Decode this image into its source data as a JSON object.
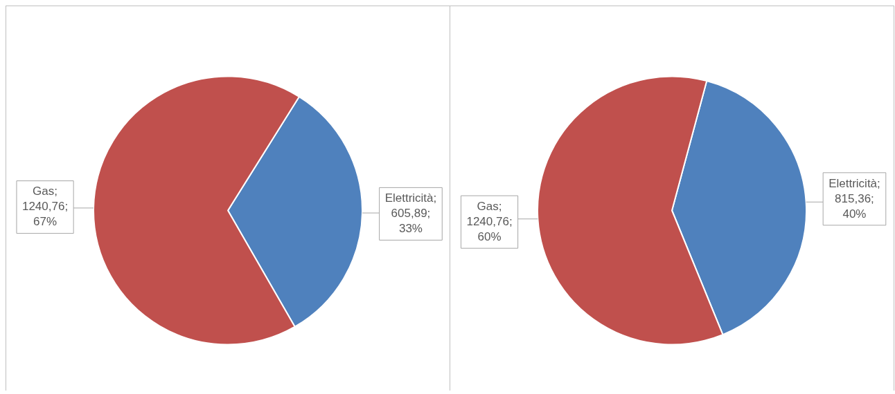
{
  "chart_data": [
    {
      "type": "pie",
      "categories": [
        "Elettricità",
        "Gas"
      ],
      "values": [
        605.89,
        1240.76
      ],
      "colors": [
        "#4f81bd",
        "#c0504d"
      ],
      "value_labels": [
        "; 605,89; 33%",
        "; 1240,76; 67%"
      ],
      "legend": false
    },
    {
      "type": "pie",
      "categories": [
        "Elettricità",
        "Gas"
      ],
      "values": [
        815.36,
        1240.76
      ],
      "colors": [
        "#4f81bd",
        "#c0504d"
      ],
      "value_labels": [
        "; 815,36; 40%",
        "; 1240,76; 60%"
      ],
      "legend": false
    }
  ]
}
